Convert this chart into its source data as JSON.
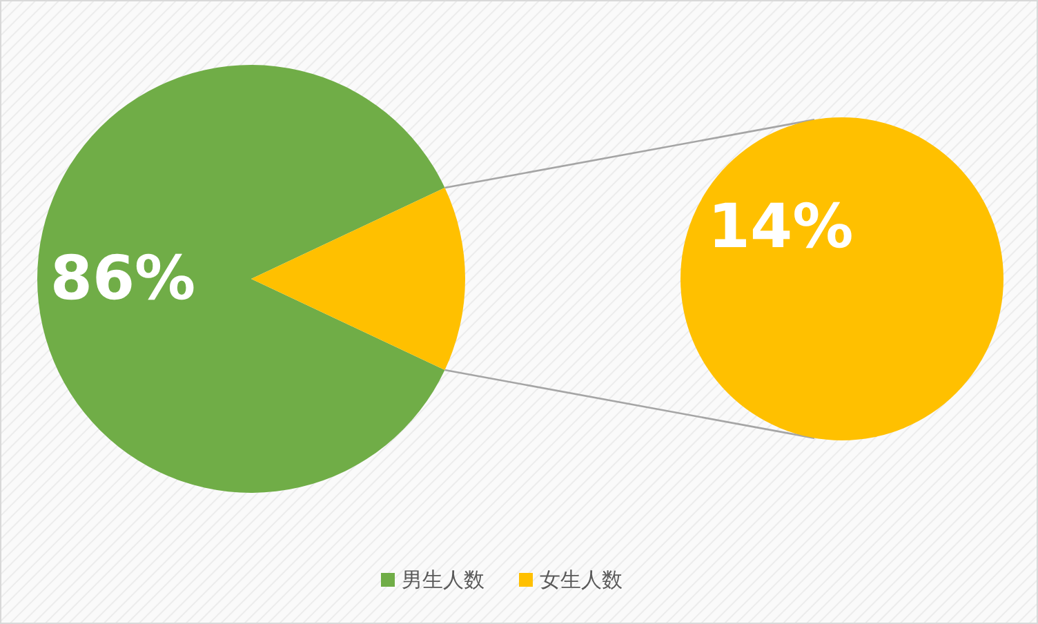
{
  "chart_data": {
    "type": "pie",
    "categories": [
      "男生人数",
      "女生人数"
    ],
    "values": [
      86,
      14
    ],
    "colors": [
      "#70ad47",
      "#ffc000"
    ],
    "value_labels": [
      "86%",
      "14%"
    ],
    "legend": "bottom"
  }
}
